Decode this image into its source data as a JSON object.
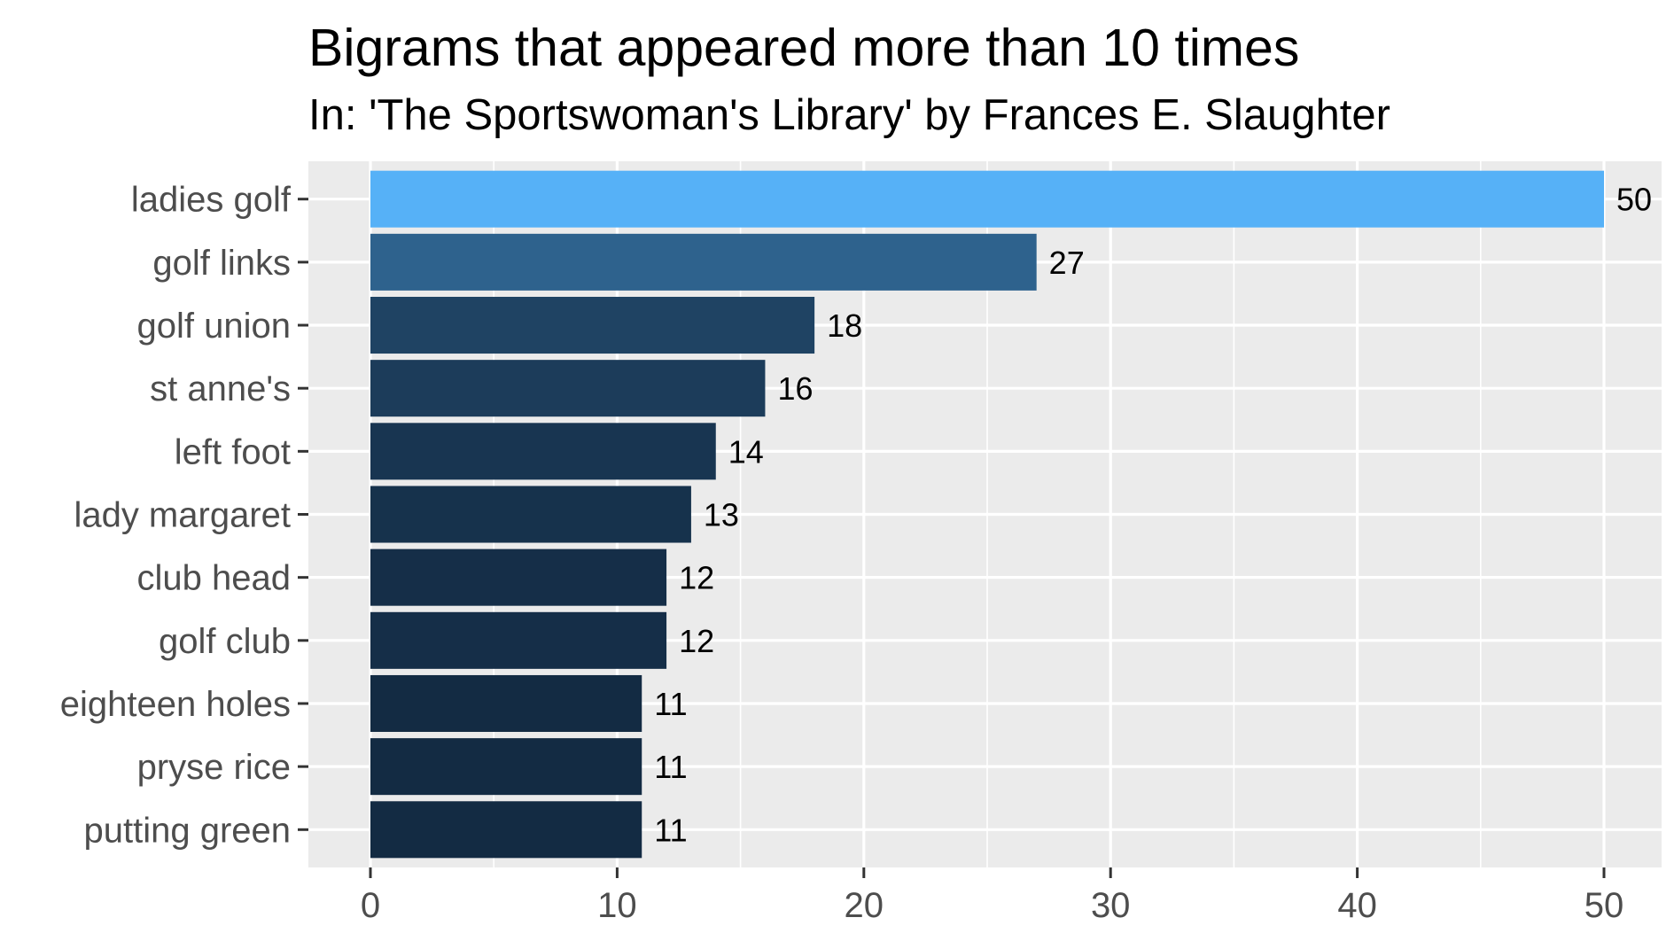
{
  "chart_data": {
    "type": "bar",
    "orientation": "horizontal",
    "title": "Bigrams that appeared more than 10 times",
    "subtitle": "In: 'The Sportswoman's Library' by Frances E. Slaughter",
    "xlabel": "",
    "ylabel": "",
    "categories": [
      "ladies golf",
      "golf links",
      "golf union",
      "st anne's",
      "left foot",
      "lady margaret",
      "club head",
      "golf club",
      "eighteen holes",
      "pryse rice",
      "putting green"
    ],
    "values": [
      50,
      27,
      18,
      16,
      14,
      13,
      12,
      12,
      11,
      11,
      11
    ],
    "value_labels": [
      "50",
      "27",
      "18",
      "16",
      "14",
      "13",
      "12",
      "12",
      "11",
      "11",
      "11"
    ],
    "xlim": [
      0,
      52.5
    ],
    "x_ticks": [
      0,
      10,
      20,
      30,
      40,
      50
    ],
    "x_tick_labels": [
      "0",
      "10",
      "20",
      "30",
      "40",
      "50"
    ],
    "color_scale": {
      "low": "#132B43",
      "high": "#56B1F7"
    },
    "grid": true,
    "legend": "none",
    "panel_background": "#EBEBEB",
    "grid_color": "#FFFFFF"
  }
}
